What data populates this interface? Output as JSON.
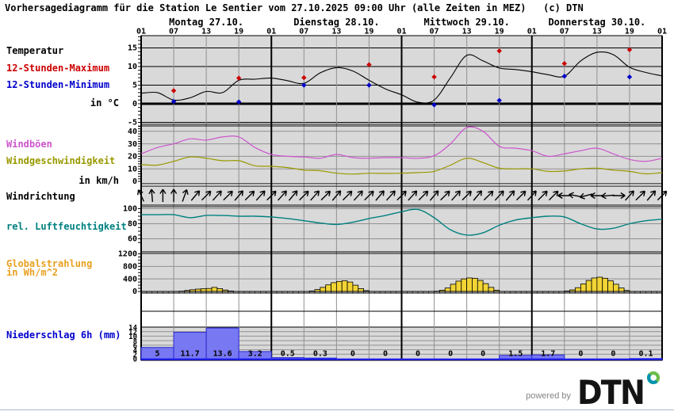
{
  "title": "Vorhersagediagramm für die Station Le Sentier vom 27.10.2025 09:00 Uhr (alle Zeiten in MEZ)   (c) DTN",
  "days": [
    "Montag 27.10.",
    "Dienstag 28.10.",
    "Mittwoch 29.10.",
    "Donnerstag 30.10."
  ],
  "hour_labels": [
    "01",
    "07",
    "13",
    "19"
  ],
  "left_labels": [
    {
      "id": "temperature",
      "text": "Temperatur",
      "color": "#000000"
    },
    {
      "id": "max12h",
      "text": "12-Stunden-Maximum",
      "color": "#cc0000"
    },
    {
      "id": "min12h",
      "text": "12-Stunden-Minimum",
      "color": "#0000cc"
    },
    {
      "id": "temp-unit",
      "text": "in °C",
      "color": "#000000"
    },
    {
      "id": "gusts",
      "text": "Windböen",
      "color": "#cc55cc"
    },
    {
      "id": "wind-speed",
      "text": "Windgeschwindigkeit",
      "color": "#999900"
    },
    {
      "id": "wind-unit",
      "text": "in km/h",
      "color": "#000000"
    },
    {
      "id": "wind-direction",
      "text": "Windrichtung",
      "color": "#000000"
    },
    {
      "id": "humidity",
      "text": "rel. Luftfeuchtigkeit",
      "color": "#008080"
    },
    {
      "id": "radiation-1",
      "text": "Globalstrahlung",
      "color": "#e8a020"
    },
    {
      "id": "radiation-2",
      "text": "in Wh/m^2",
      "color": "#e8a020"
    },
    {
      "id": "precipitation",
      "text": "Niederschlag 6h (mm)",
      "color": "#0000cc"
    }
  ],
  "colors": {
    "plot_bg": "#d9d9d9",
    "grid": "#909090",
    "day_line": "#000000",
    "temperature": "#000000",
    "max_marker": "#cc0000",
    "min_marker": "#0000cc",
    "gusts": "#cc55cc",
    "wind_speed": "#999900",
    "humidity": "#008080",
    "radiation_bar_fill": "#f2d435",
    "radiation_bar_stroke": "#000000",
    "precip_bar_fill": "#7878f2",
    "precip_bar_stroke": "#2a2ad0",
    "precip_baseline": "#2222ff",
    "footer_line": "#a9bdd1",
    "dtn_blue": "#0093b2",
    "dtn_green": "#6abf4b"
  },
  "chart_data": [
    {
      "id": "temperature",
      "type": "line",
      "name": "Temperatur",
      "unit": "°C",
      "x_start": "Mo 01:00 MEZ",
      "x_step_hours": 3,
      "ylim": [
        -6,
        18
      ],
      "yticks": [
        15,
        10,
        5,
        0,
        -5
      ],
      "values": [
        2.8,
        3.0,
        1.0,
        1.6,
        3.3,
        3.0,
        6.3,
        6.6,
        6.9,
        6.2,
        5.5,
        8.3,
        9.7,
        8.8,
        6.3,
        4.0,
        2.4,
        0.4,
        1.0,
        7.0,
        13.0,
        11.5,
        9.6,
        9.2,
        8.6,
        7.8,
        7.4,
        11.5,
        13.8,
        13.2,
        9.8,
        8.4,
        7.5
      ]
    },
    {
      "id": "temperature_extremes",
      "type": "scatter",
      "unit": "°C",
      "series": [
        {
          "name": "12-Stunden-Maximum",
          "color": "#cc0000",
          "points": [
            {
              "t": 6,
              "v": 3.5
            },
            {
              "t": 18,
              "v": 6.9
            },
            {
              "t": 30,
              "v": 7.0
            },
            {
              "t": 42,
              "v": 10.5
            },
            {
              "t": 54,
              "v": 7.2
            },
            {
              "t": 66,
              "v": 14.2
            },
            {
              "t": 78,
              "v": 10.8
            },
            {
              "t": 90,
              "v": 14.5
            }
          ]
        },
        {
          "name": "12-Stunden-Minimum",
          "color": "#0000cc",
          "points": [
            {
              "t": 6,
              "v": 0.6
            },
            {
              "t": 18,
              "v": 0.5
            },
            {
              "t": 30,
              "v": 5.0
            },
            {
              "t": 42,
              "v": 5.0
            },
            {
              "t": 54,
              "v": -0.3
            },
            {
              "t": 66,
              "v": 0.9
            },
            {
              "t": 78,
              "v": 7.4
            },
            {
              "t": 90,
              "v": 7.2
            }
          ]
        }
      ]
    },
    {
      "id": "wind",
      "type": "line",
      "unit": "km/h",
      "x_step_hours": 3,
      "ylim": [
        0,
        44
      ],
      "yticks": [
        40,
        30,
        20,
        10,
        0
      ],
      "series": [
        {
          "name": "Windböen",
          "color": "#cc55cc",
          "values": [
            22,
            27,
            30,
            34,
            33,
            35.5,
            35.5,
            27,
            21.5,
            20,
            19.5,
            18.5,
            21.5,
            19,
            18.5,
            19,
            19,
            18.5,
            20.5,
            30,
            43,
            40,
            28,
            26.5,
            24.5,
            20,
            22,
            24.5,
            26.5,
            22,
            17.5,
            16,
            18.5
          ]
        },
        {
          "name": "Windgeschwindigkeit",
          "color": "#999900",
          "values": [
            13.5,
            13,
            16,
            19.5,
            18.5,
            16.5,
            16.5,
            12.5,
            12,
            11,
            9,
            8.5,
            6.5,
            5.8,
            6.5,
            6.3,
            6.5,
            7,
            8,
            13,
            18.5,
            15,
            10.5,
            10,
            10,
            8,
            8.3,
            10,
            10.5,
            9,
            8,
            6,
            7
          ]
        }
      ]
    },
    {
      "id": "wind_direction",
      "type": "arrows",
      "name": "Windrichtung",
      "x_step_hours": 2,
      "degrees_ccw_from_east": [
        115,
        95,
        90,
        90,
        70,
        50,
        45,
        48,
        45,
        50,
        45,
        48,
        45,
        48,
        50,
        45,
        48,
        45,
        50,
        45,
        48,
        45,
        50,
        48,
        45,
        48,
        45,
        50,
        45,
        48,
        45,
        50,
        45,
        48,
        50,
        45,
        48,
        45,
        45,
        180,
        170,
        195,
        180,
        185,
        0,
        48,
        45,
        50,
        45
      ]
    },
    {
      "id": "humidity",
      "type": "line",
      "name": "rel. Luftfeuchtigkeit",
      "unit": "%",
      "x_step_hours": 3,
      "ylim": [
        43,
        102
      ],
      "yticks": [
        100,
        80,
        60
      ],
      "values": [
        92,
        92,
        92,
        88,
        91,
        91,
        90,
        90,
        89,
        87,
        84,
        81,
        79,
        82,
        87,
        91,
        96,
        99,
        88,
        72,
        65,
        68,
        78,
        85,
        88,
        90,
        89,
        80,
        73,
        74,
        80,
        84,
        86
      ]
    },
    {
      "id": "global_radiation",
      "type": "bar",
      "name": "Globalstrahlung",
      "unit": "Wh/m^2",
      "bar_width_hours": 1,
      "ylim": [
        0,
        1260
      ],
      "yticks": [
        1200,
        800,
        400,
        0
      ],
      "bars": [
        {
          "t": 7,
          "v": 10
        },
        {
          "t": 8,
          "v": 30
        },
        {
          "t": 9,
          "v": 55
        },
        {
          "t": 10,
          "v": 75
        },
        {
          "t": 11,
          "v": 85
        },
        {
          "t": 12,
          "v": 95
        },
        {
          "t": 13,
          "v": 130
        },
        {
          "t": 14,
          "v": 90
        },
        {
          "t": 15,
          "v": 45
        },
        {
          "t": 16,
          "v": 15
        },
        {
          "t": 31,
          "v": 15
        },
        {
          "t": 32,
          "v": 60
        },
        {
          "t": 33,
          "v": 130
        },
        {
          "t": 34,
          "v": 210
        },
        {
          "t": 35,
          "v": 280
        },
        {
          "t": 36,
          "v": 320
        },
        {
          "t": 37,
          "v": 340
        },
        {
          "t": 38,
          "v": 300
        },
        {
          "t": 39,
          "v": 200
        },
        {
          "t": 40,
          "v": 90
        },
        {
          "t": 41,
          "v": 25
        },
        {
          "t": 54,
          "v": 10
        },
        {
          "t": 55,
          "v": 40
        },
        {
          "t": 56,
          "v": 110
        },
        {
          "t": 57,
          "v": 230
        },
        {
          "t": 58,
          "v": 330
        },
        {
          "t": 59,
          "v": 400
        },
        {
          "t": 60,
          "v": 430
        },
        {
          "t": 61,
          "v": 420
        },
        {
          "t": 62,
          "v": 350
        },
        {
          "t": 63,
          "v": 250
        },
        {
          "t": 64,
          "v": 130
        },
        {
          "t": 65,
          "v": 40
        },
        {
          "t": 78,
          "v": 15
        },
        {
          "t": 79,
          "v": 50
        },
        {
          "t": 80,
          "v": 120
        },
        {
          "t": 81,
          "v": 240
        },
        {
          "t": 82,
          "v": 350
        },
        {
          "t": 83,
          "v": 430
        },
        {
          "t": 84,
          "v": 455
        },
        {
          "t": 85,
          "v": 420
        },
        {
          "t": 86,
          "v": 340
        },
        {
          "t": 87,
          "v": 230
        },
        {
          "t": 88,
          "v": 110
        },
        {
          "t": 89,
          "v": 30
        }
      ]
    },
    {
      "id": "precipitation",
      "type": "bar",
      "name": "Niederschlag 6h (mm)",
      "unit": "mm",
      "bar_width_hours": 6,
      "ylim": [
        0,
        14
      ],
      "yticks": [
        14,
        12,
        10,
        8,
        6,
        4,
        2,
        0
      ],
      "values": [
        5,
        11.7,
        13.6,
        3.2,
        0.5,
        0.3,
        0,
        0,
        0,
        0,
        0,
        1.5,
        1.7,
        0,
        0,
        0.1
      ],
      "labels": [
        "5",
        "11.7",
        "13.6",
        "3.2",
        "0.5",
        "0.3",
        "0",
        "0",
        "0",
        "0",
        "0",
        "1.5",
        "1.7",
        "0",
        "0",
        "0.1"
      ]
    }
  ],
  "footer": {
    "powered_by": "powered by",
    "logo": "DTN"
  }
}
